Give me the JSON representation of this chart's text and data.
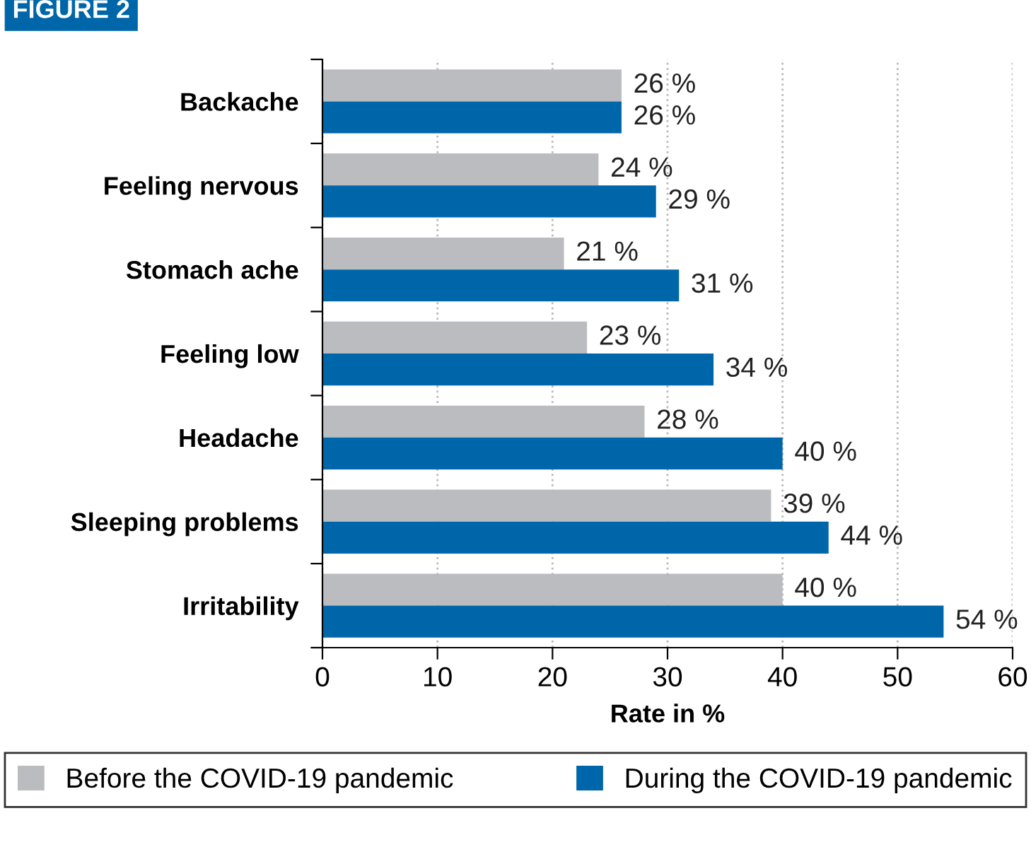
{
  "chart_data": {
    "type": "bar",
    "orientation": "horizontal",
    "title": "FIGURE 2",
    "xlabel": "Rate in %",
    "categories": [
      "Backache",
      "Feeling nervous",
      "Stomach ache",
      "Feeling low",
      "Headache",
      "Sleeping problems",
      "Irritability"
    ],
    "series": [
      {
        "name": "Before the COVID-19 pandemic",
        "color": "#bbbcc0",
        "values": [
          26,
          24,
          21,
          23,
          28,
          39,
          40
        ],
        "value_labels": [
          "26 %",
          "24 %",
          "21 %",
          "23 %",
          "28 %",
          "39 %",
          "40 %"
        ]
      },
      {
        "name": "During the COVID-19 pandemic",
        "color": "#0066aa",
        "values": [
          26,
          29,
          31,
          34,
          40,
          44,
          54
        ],
        "value_labels": [
          "26 %",
          "29 %",
          "31 %",
          "34 %",
          "40 %",
          "44 %",
          "54 %"
        ]
      }
    ],
    "xlim": [
      0,
      60
    ],
    "xticks": [
      0,
      10,
      20,
      30,
      40,
      50,
      60
    ],
    "grid": "x",
    "legend": "bottom"
  }
}
